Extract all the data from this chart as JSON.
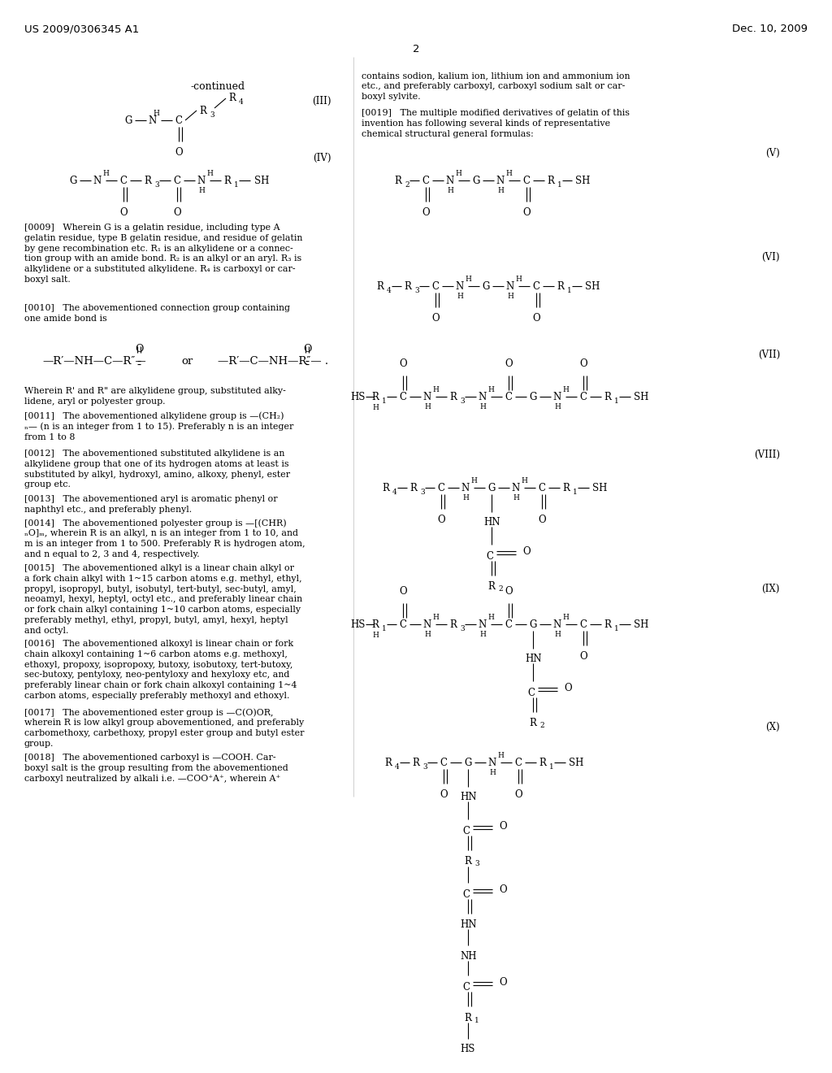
{
  "bg_color": "#ffffff",
  "header_left": "US 2009/0306345 A1",
  "header_right": "Dec. 10, 2009",
  "page_number": "2",
  "col_div": 0.425
}
